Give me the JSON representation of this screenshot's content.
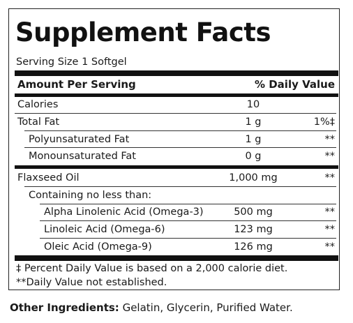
{
  "panel": {
    "title": "Supplement Facts",
    "serving_size": "Serving Size 1 Softgel",
    "header": {
      "amount_label": "Amount Per Serving",
      "dv_label": "% Daily Value"
    },
    "rows": [
      {
        "label": "Calories",
        "amount": "10",
        "dv": ""
      },
      {
        "label": "Total Fat",
        "amount": "1 g",
        "dv": "1%‡"
      },
      {
        "label": "Polyunsaturated Fat",
        "amount": "1 g",
        "dv": "**"
      },
      {
        "label": "Monounsaturated Fat",
        "amount": "0 g",
        "dv": "**"
      },
      {
        "label": "Flaxseed Oil",
        "amount": "1,000 mg",
        "dv": "**"
      },
      {
        "label": "Containing no less than:",
        "amount": "",
        "dv": ""
      },
      {
        "label": "Alpha Linolenic Acid (Omega-3)",
        "amount": "500 mg",
        "dv": "**"
      },
      {
        "label": "Linoleic Acid (Omega-6)",
        "amount": "123 mg",
        "dv": "**"
      },
      {
        "label": "Oleic Acid (Omega-9)",
        "amount": "126 mg",
        "dv": "**"
      }
    ],
    "footnotes": [
      "‡ Percent Daily Value is based on a 2,000 calorie diet.",
      "**Daily Value not established."
    ]
  },
  "other_ingredients": {
    "label": "Other Ingredients:",
    "value": " Gelatin, Glycerin, Purified Water."
  }
}
